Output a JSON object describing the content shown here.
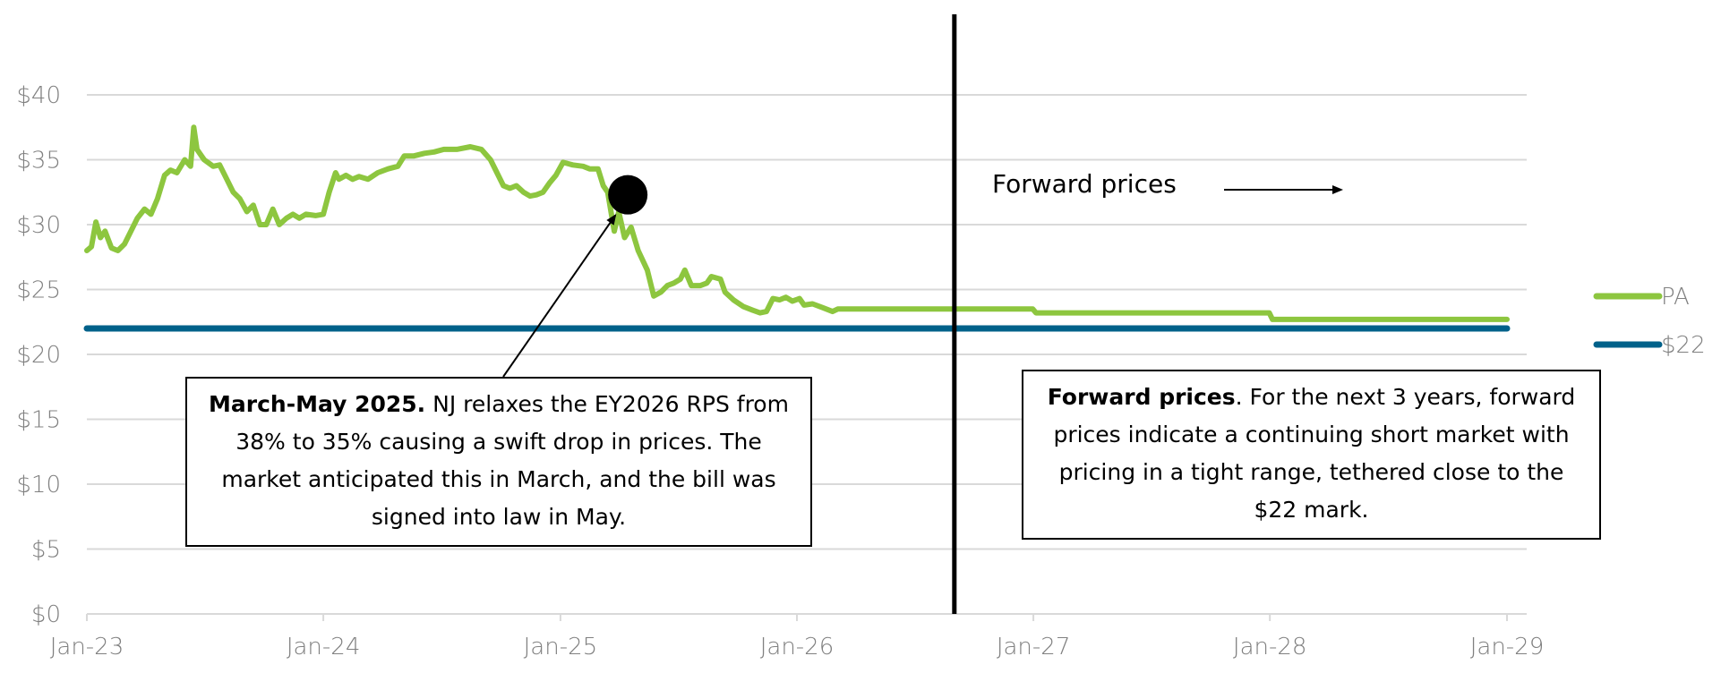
{
  "chart_data": {
    "type": "line",
    "title": "",
    "xlabel": "",
    "ylabel": "",
    "ylim": [
      0,
      40
    ],
    "y_ticks": [
      "$0",
      "$5",
      "$10",
      "$15",
      "$20",
      "$25",
      "$30",
      "$35",
      "$40"
    ],
    "y_tick_values": [
      0,
      5,
      10,
      15,
      20,
      25,
      30,
      35,
      40
    ],
    "xlim": [
      "2023-01",
      "2029-01"
    ],
    "x_ticks": [
      "Jan-23",
      "Jan-24",
      "Jan-25",
      "Jan-26",
      "Jan-27",
      "Jan-28",
      "Jan-29"
    ],
    "x_tick_dates": [
      "2023-01-01",
      "2024-01-01",
      "2025-01-01",
      "2026-01-01",
      "2027-01-01",
      "2028-01-01",
      "2029-01-01"
    ],
    "grid": "horizontal",
    "legend_position": "right",
    "series": [
      {
        "name": "PA",
        "color": "#8DC63F",
        "points": [
          [
            "2023-01-01",
            28.0
          ],
          [
            "2023-01-08",
            28.3
          ],
          [
            "2023-01-15",
            30.2
          ],
          [
            "2023-01-22",
            29.0
          ],
          [
            "2023-01-29",
            29.5
          ],
          [
            "2023-02-08",
            28.2
          ],
          [
            "2023-02-18",
            28.0
          ],
          [
            "2023-02-28",
            28.5
          ],
          [
            "2023-03-10",
            29.5
          ],
          [
            "2023-03-20",
            30.5
          ],
          [
            "2023-03-31",
            31.2
          ],
          [
            "2023-04-10",
            30.8
          ],
          [
            "2023-04-20",
            32.0
          ],
          [
            "2023-05-01",
            33.8
          ],
          [
            "2023-05-10",
            34.2
          ],
          [
            "2023-05-20",
            34.0
          ],
          [
            "2023-06-01",
            35.0
          ],
          [
            "2023-06-10",
            34.5
          ],
          [
            "2023-06-15",
            37.5
          ],
          [
            "2023-06-20",
            35.8
          ],
          [
            "2023-07-01",
            35.0
          ],
          [
            "2023-07-15",
            34.5
          ],
          [
            "2023-07-25",
            34.6
          ],
          [
            "2023-08-05",
            33.5
          ],
          [
            "2023-08-15",
            32.5
          ],
          [
            "2023-08-25",
            32.0
          ],
          [
            "2023-09-05",
            31.0
          ],
          [
            "2023-09-15",
            31.5
          ],
          [
            "2023-09-25",
            30.0
          ],
          [
            "2023-10-05",
            30.0
          ],
          [
            "2023-10-15",
            31.2
          ],
          [
            "2023-10-25",
            30.0
          ],
          [
            "2023-11-05",
            30.5
          ],
          [
            "2023-11-15",
            30.8
          ],
          [
            "2023-11-25",
            30.5
          ],
          [
            "2023-12-05",
            30.8
          ],
          [
            "2023-12-20",
            30.7
          ],
          [
            "2024-01-01",
            30.8
          ],
          [
            "2024-01-10",
            32.5
          ],
          [
            "2024-01-20",
            34.0
          ],
          [
            "2024-01-25",
            33.5
          ],
          [
            "2024-02-05",
            33.8
          ],
          [
            "2024-02-15",
            33.5
          ],
          [
            "2024-02-25",
            33.7
          ],
          [
            "2024-03-10",
            33.5
          ],
          [
            "2024-03-25",
            34.0
          ],
          [
            "2024-04-10",
            34.3
          ],
          [
            "2024-04-25",
            34.5
          ],
          [
            "2024-05-05",
            35.3
          ],
          [
            "2024-05-20",
            35.3
          ],
          [
            "2024-06-05",
            35.5
          ],
          [
            "2024-06-20",
            35.6
          ],
          [
            "2024-07-05",
            35.8
          ],
          [
            "2024-07-25",
            35.8
          ],
          [
            "2024-08-15",
            36.0
          ],
          [
            "2024-09-01",
            35.8
          ],
          [
            "2024-09-15",
            35.0
          ],
          [
            "2024-09-25",
            34.0
          ],
          [
            "2024-10-05",
            33.0
          ],
          [
            "2024-10-15",
            32.8
          ],
          [
            "2024-10-25",
            33.0
          ],
          [
            "2024-11-05",
            32.5
          ],
          [
            "2024-11-15",
            32.2
          ],
          [
            "2024-11-25",
            32.3
          ],
          [
            "2024-12-05",
            32.5
          ],
          [
            "2024-12-15",
            33.2
          ],
          [
            "2024-12-25",
            33.8
          ],
          [
            "2025-01-05",
            34.8
          ],
          [
            "2025-01-20",
            34.6
          ],
          [
            "2025-02-05",
            34.5
          ],
          [
            "2025-02-15",
            34.3
          ],
          [
            "2025-02-28",
            34.3
          ],
          [
            "2025-03-08",
            33.0
          ],
          [
            "2025-03-15",
            32.5
          ],
          [
            "2025-03-25",
            29.5
          ],
          [
            "2025-04-01",
            31.0
          ],
          [
            "2025-04-10",
            29.0
          ],
          [
            "2025-04-20",
            29.8
          ],
          [
            "2025-05-01",
            28.0
          ],
          [
            "2025-05-15",
            26.5
          ],
          [
            "2025-05-25",
            24.5
          ],
          [
            "2025-06-05",
            24.8
          ],
          [
            "2025-06-15",
            25.3
          ],
          [
            "2025-06-25",
            25.5
          ],
          [
            "2025-07-05",
            25.8
          ],
          [
            "2025-07-12",
            26.5
          ],
          [
            "2025-07-22",
            25.3
          ],
          [
            "2025-08-05",
            25.3
          ],
          [
            "2025-08-15",
            25.5
          ],
          [
            "2025-08-22",
            26.0
          ],
          [
            "2025-09-05",
            25.8
          ],
          [
            "2025-09-12",
            24.8
          ],
          [
            "2025-09-25",
            24.2
          ],
          [
            "2025-10-10",
            23.7
          ],
          [
            "2025-10-25",
            23.4
          ],
          [
            "2025-11-05",
            23.2
          ],
          [
            "2025-11-15",
            23.3
          ],
          [
            "2025-11-25",
            24.3
          ],
          [
            "2025-12-05",
            24.2
          ],
          [
            "2025-12-15",
            24.4
          ],
          [
            "2025-12-25",
            24.1
          ],
          [
            "2026-01-05",
            24.3
          ],
          [
            "2026-01-12",
            23.8
          ],
          [
            "2026-01-25",
            23.9
          ],
          [
            "2026-02-10",
            23.6
          ],
          [
            "2026-02-25",
            23.3
          ],
          [
            "2026-03-05",
            23.5
          ],
          [
            "2026-03-15",
            23.5
          ],
          [
            "2026-12-31",
            23.5
          ],
          [
            "2027-01-05",
            23.2
          ],
          [
            "2027-12-31",
            23.2
          ],
          [
            "2028-01-05",
            22.7
          ],
          [
            "2029-01-01",
            22.7
          ]
        ]
      },
      {
        "name": "$22",
        "color": "#00618A",
        "points": [
          [
            "2023-01-01",
            22.0
          ],
          [
            "2029-01-01",
            22.0
          ]
        ]
      }
    ],
    "vertical_line": {
      "date": "2026-09-01",
      "color": "#000000"
    },
    "marker": {
      "date": "2025-04-15",
      "value": 32.3,
      "color": "#000000"
    },
    "annotations": [
      {
        "lead": "March-May 2025.",
        "text": " NJ relaxes the EY2026 RPS from 38% to 35% causing a swift drop in prices. The market anticipated this in March, and the bill was signed into law in May."
      },
      {
        "lead": "Forward prices",
        "text": ".  For the next 3 years, forward prices indicate a continuing short market with pricing in a tight range, tethered close to the $22 mark."
      }
    ],
    "forward_label": "Forward prices"
  }
}
